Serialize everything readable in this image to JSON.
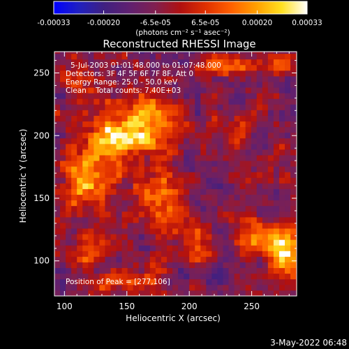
{
  "chart_data": {
    "type": "heatmap",
    "title": "Reconstructed RHESSI Image",
    "xlabel": "Heliocentric X (arcsec)",
    "ylabel": "Heliocentric Y (arcsec)",
    "xlim": [
      92,
      286
    ],
    "ylim": [
      72,
      267
    ],
    "x_ticks": [
      100,
      150,
      200,
      250
    ],
    "y_ticks": [
      100,
      150,
      200,
      250
    ],
    "annotations": [
      "5-Jul-2003 01:01:48.000 to 01:07:48.000",
      "Detectors: 3F 4F 5F 6F 7F 8F, Att 0",
      "Energy Range: 25.0 - 50.0 keV",
      "Clean    Total counts: 7.40E+03"
    ],
    "peak_label": "Position of Peak = [277,106]",
    "peak": [
      277,
      106
    ],
    "colorbar": {
      "range": [
        -0.00033,
        0.00033
      ],
      "tick_values": [
        -0.00033,
        -0.0002,
        -6.5e-05,
        6.5e-05,
        0.0002,
        0.00033
      ],
      "tick_labels": [
        "-0.00033",
        "-0.00020",
        "-6.5e-05",
        "6.5e-05",
        "0.00020",
        "0.00033"
      ],
      "units_label": "(photons cm⁻² s⁻¹ asec⁻²)",
      "colors": [
        "#0000ff",
        "#2020c0",
        "#402080",
        "#602070",
        "#802050",
        "#b01010",
        "#e03000",
        "#ff6000",
        "#ffa000",
        "#ffe020",
        "#ffffff"
      ]
    },
    "sources": [
      {
        "x": 165,
        "y": 210,
        "sx": 18,
        "sy": 14,
        "amp": 0.00034
      },
      {
        "x": 135,
        "y": 190,
        "sx": 16,
        "sy": 18,
        "amp": 0.00026
      },
      {
        "x": 115,
        "y": 165,
        "sx": 12,
        "sy": 14,
        "amp": 0.00025
      },
      {
        "x": 178,
        "y": 150,
        "sx": 14,
        "sy": 18,
        "amp": 0.00022
      },
      {
        "x": 277,
        "y": 106,
        "sx": 9,
        "sy": 13,
        "amp": 0.00036
      },
      {
        "x": 255,
        "y": 118,
        "sx": 11,
        "sy": 9,
        "amp": 0.00024
      },
      {
        "x": 230,
        "y": 255,
        "sx": 16,
        "sy": 7,
        "amp": 0.00024
      },
      {
        "x": 275,
        "y": 255,
        "sx": 9,
        "sy": 8,
        "amp": 0.0002
      },
      {
        "x": 205,
        "y": 110,
        "sx": 12,
        "sy": 10,
        "amp": 0.00016
      },
      {
        "x": 118,
        "y": 110,
        "sx": 12,
        "sy": 10,
        "amp": 0.00016
      },
      {
        "x": 155,
        "y": 85,
        "sx": 14,
        "sy": 6,
        "amp": 0.00017
      },
      {
        "x": 240,
        "y": 205,
        "sx": 9,
        "sy": 7,
        "amp": 0.00013
      },
      {
        "x": 120,
        "y": 240,
        "sx": 10,
        "sy": 8,
        "amp": 0.00014
      }
    ]
  },
  "footer": {
    "timestamp": "3-May-2022 06:48"
  }
}
